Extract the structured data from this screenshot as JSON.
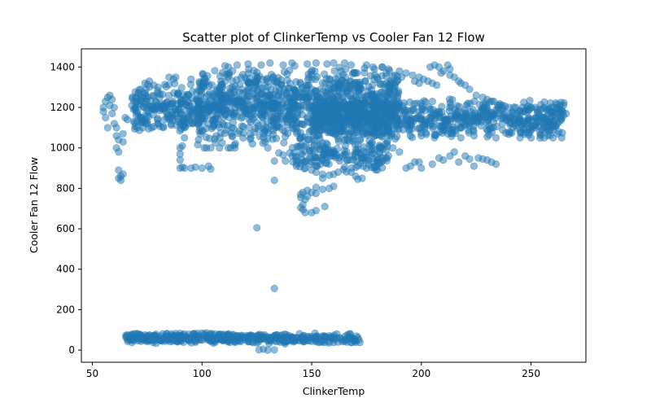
{
  "chart_data": {
    "type": "scatter",
    "title": "Scatter plot of ClinkerTemp vs Cooler Fan 12 Flow",
    "xlabel": "ClinkerTemp",
    "ylabel": "Cooler Fan 12 Flow",
    "xlim": [
      45,
      275
    ],
    "ylim": [
      -60,
      1490
    ],
    "xticks": [
      50,
      100,
      150,
      200,
      250
    ],
    "yticks": [
      0,
      200,
      400,
      600,
      800,
      1000,
      1200,
      1400
    ],
    "grid": false,
    "legend": "none",
    "marker_color": "#1f77b4",
    "marker_alpha": 0.5,
    "clusters": [
      {
        "x_range": [
          98,
          190
        ],
        "y_range": [
          1000,
          1415
        ],
        "count": 1100
      },
      {
        "x_range": [
          68,
          100
        ],
        "y_range": [
          1070,
          1330
        ],
        "count": 220
      },
      {
        "x_range": [
          150,
          265
        ],
        "y_range": [
          1040,
          1250
        ],
        "count": 700
      },
      {
        "x_range": [
          140,
          185
        ],
        "y_range": [
          880,
          1050
        ],
        "count": 160
      },
      {
        "x_range": [
          65,
          172
        ],
        "y_range": [
          30,
          85
        ],
        "count": 380
      }
    ],
    "points": [
      [
        55,
        1200
      ],
      [
        55,
        1180
      ],
      [
        56,
        1230
      ],
      [
        56,
        1150
      ],
      [
        57,
        1100
      ],
      [
        57,
        1250
      ],
      [
        58,
        1260
      ],
      [
        58,
        1210
      ],
      [
        59,
        1240
      ],
      [
        59,
        1170
      ],
      [
        60,
        1120
      ],
      [
        60,
        1200
      ],
      [
        61,
        1060
      ],
      [
        61,
        1100
      ],
      [
        61,
        1000
      ],
      [
        62,
        1040
      ],
      [
        62,
        980
      ],
      [
        62,
        890
      ],
      [
        63,
        860
      ],
      [
        63,
        840
      ],
      [
        62,
        850
      ],
      [
        64,
        870
      ],
      [
        64,
        1030
      ],
      [
        64,
        1070
      ],
      [
        65,
        1150
      ],
      [
        66,
        1140
      ],
      [
        90,
        1000
      ],
      [
        90,
        970
      ],
      [
        90,
        940
      ],
      [
        91,
        1010
      ],
      [
        92,
        1050
      ],
      [
        92,
        1100
      ],
      [
        88,
        1350
      ],
      [
        87,
        1340
      ],
      [
        86,
        1120
      ],
      [
        90,
        900
      ],
      [
        91,
        905
      ],
      [
        92,
        900
      ],
      [
        95,
        900
      ],
      [
        97,
        905
      ],
      [
        100,
        900
      ],
      [
        103,
        910
      ],
      [
        104,
        895
      ],
      [
        101,
        1000
      ],
      [
        102,
        1000
      ],
      [
        104,
        1000
      ],
      [
        108,
        1000
      ],
      [
        112,
        1000
      ],
      [
        113,
        1000
      ],
      [
        115,
        1000
      ],
      [
        130,
        1000
      ],
      [
        135,
        975
      ],
      [
        137,
        965
      ],
      [
        140,
        975
      ],
      [
        138,
        935
      ],
      [
        133,
        935
      ],
      [
        133,
        840
      ],
      [
        125,
        605
      ],
      [
        133,
        305
      ],
      [
        143,
        935
      ],
      [
        143,
        910
      ],
      [
        147,
        900
      ],
      [
        150,
        890
      ],
      [
        152,
        880
      ],
      [
        155,
        870
      ],
      [
        158,
        865
      ],
      [
        160,
        870
      ],
      [
        162,
        880
      ],
      [
        165,
        905
      ],
      [
        168,
        880
      ],
      [
        170,
        860
      ],
      [
        171,
        845
      ],
      [
        155,
        850
      ],
      [
        152,
        805
      ],
      [
        155,
        795
      ],
      [
        158,
        800
      ],
      [
        160,
        810
      ],
      [
        148,
        790
      ],
      [
        146,
        780
      ],
      [
        145,
        770
      ],
      [
        145,
        755
      ],
      [
        147,
        745
      ],
      [
        146,
        720
      ],
      [
        145,
        705
      ],
      [
        146,
        695
      ],
      [
        147,
        680
      ],
      [
        150,
        680
      ],
      [
        152,
        690
      ],
      [
        156,
        710
      ],
      [
        148,
        760
      ],
      [
        150,
        780
      ],
      [
        152,
        775
      ],
      [
        173,
        850
      ],
      [
        175,
        900
      ],
      [
        176,
        920
      ],
      [
        178,
        930
      ],
      [
        180,
        940
      ],
      [
        182,
        950
      ],
      [
        185,
        960
      ],
      [
        187,
        1000
      ],
      [
        190,
        980
      ],
      [
        193,
        900
      ],
      [
        195,
        910
      ],
      [
        197,
        930
      ],
      [
        199,
        930
      ],
      [
        200,
        900
      ],
      [
        205,
        920
      ],
      [
        208,
        950
      ],
      [
        210,
        940
      ],
      [
        213,
        960
      ],
      [
        215,
        980
      ],
      [
        217,
        930
      ],
      [
        220,
        960
      ],
      [
        222,
        945
      ],
      [
        224,
        910
      ],
      [
        226,
        950
      ],
      [
        228,
        945
      ],
      [
        230,
        940
      ],
      [
        232,
        930
      ],
      [
        234,
        920
      ],
      [
        204,
        1400
      ],
      [
        206,
        1410
      ],
      [
        208,
        1400
      ],
      [
        212,
        1410
      ],
      [
        213,
        1390
      ],
      [
        210,
        1380
      ],
      [
        209,
        1370
      ],
      [
        213,
        1360
      ],
      [
        215,
        1350
      ],
      [
        217,
        1330
      ],
      [
        218,
        1320
      ],
      [
        220,
        1310
      ],
      [
        222,
        1290
      ],
      [
        225,
        1260
      ],
      [
        228,
        1250
      ],
      [
        230,
        1240
      ],
      [
        233,
        1230
      ],
      [
        237,
        1210
      ],
      [
        240,
        1200
      ],
      [
        243,
        1200
      ],
      [
        246,
        1200
      ],
      [
        248,
        1200
      ],
      [
        250,
        1200
      ],
      [
        252,
        1200
      ],
      [
        256,
        1200
      ],
      [
        258,
        1190
      ],
      [
        260,
        1200
      ],
      [
        262,
        1200
      ],
      [
        264,
        1180
      ],
      [
        266,
        1170
      ],
      [
        252,
        1100
      ],
      [
        255,
        1090
      ],
      [
        258,
        1080
      ],
      [
        260,
        1090
      ],
      [
        262,
        1070
      ],
      [
        264,
        1050
      ],
      [
        260,
        1050
      ],
      [
        256,
        1050
      ],
      [
        250,
        1050
      ],
      [
        245,
        1050
      ],
      [
        234,
        1050
      ],
      [
        230,
        1055
      ],
      [
        224,
        1060
      ],
      [
        218,
        1050
      ],
      [
        212,
        1070
      ],
      [
        206,
        1050
      ],
      [
        200,
        1060
      ],
      [
        195,
        1060
      ],
      [
        188,
        1045
      ],
      [
        182,
        1055
      ],
      [
        168,
        1410
      ],
      [
        165,
        1420
      ],
      [
        160,
        1420
      ],
      [
        157,
        1415
      ],
      [
        152,
        1420
      ],
      [
        148,
        1415
      ],
      [
        141,
        1420
      ],
      [
        137,
        1410
      ],
      [
        131,
        1420
      ],
      [
        127,
        1410
      ],
      [
        121,
        1415
      ],
      [
        116,
        1410
      ],
      [
        112,
        1400
      ],
      [
        175,
        1410
      ],
      [
        178,
        1400
      ],
      [
        182,
        1400
      ],
      [
        185,
        1390
      ],
      [
        190,
        1380
      ],
      [
        193,
        1370
      ],
      [
        196,
        1360
      ],
      [
        199,
        1350
      ],
      [
        201,
        1340
      ],
      [
        203,
        1330
      ],
      [
        205,
        1320
      ],
      [
        207,
        1310
      ],
      [
        197,
        1330
      ],
      [
        199,
        1320
      ],
      [
        184,
        1370
      ],
      [
        188,
        1360
      ],
      [
        191,
        1350
      ],
      [
        74,
        1320
      ],
      [
        76,
        1330
      ],
      [
        78,
        1310
      ],
      [
        80,
        1300
      ],
      [
        72,
        1290
      ],
      [
        71,
        1270
      ],
      [
        70,
        1250
      ],
      [
        69,
        1230
      ],
      [
        68,
        1210
      ],
      [
        70,
        1180
      ],
      [
        71,
        1160
      ],
      [
        72,
        1140
      ],
      [
        73,
        1100
      ],
      [
        75,
        1120
      ],
      [
        77,
        1100
      ],
      [
        80,
        1120
      ],
      [
        83,
        1140
      ],
      [
        85,
        1350
      ],
      [
        95,
        1340
      ],
      [
        99,
        1320
      ],
      [
        66,
        75
      ],
      [
        67,
        72
      ],
      [
        68,
        78
      ],
      [
        69,
        80
      ],
      [
        70,
        82
      ],
      [
        71,
        80
      ],
      [
        72,
        76
      ],
      [
        74,
        75
      ],
      [
        76,
        74
      ],
      [
        79,
        78
      ],
      [
        82,
        80
      ],
      [
        84,
        82
      ],
      [
        86,
        80
      ],
      [
        88,
        82
      ],
      [
        90,
        83
      ],
      [
        92,
        80
      ],
      [
        94,
        78
      ],
      [
        96,
        80
      ],
      [
        98,
        82
      ],
      [
        100,
        84
      ],
      [
        102,
        85
      ],
      [
        104,
        82
      ],
      [
        106,
        80
      ],
      [
        108,
        76
      ],
      [
        110,
        78
      ],
      [
        112,
        80
      ],
      [
        114,
        74
      ],
      [
        116,
        72
      ],
      [
        118,
        70
      ],
      [
        120,
        72
      ],
      [
        122,
        70
      ],
      [
        124,
        68
      ],
      [
        126,
        70
      ],
      [
        128,
        66
      ],
      [
        130,
        64
      ],
      [
        132,
        62
      ],
      [
        134,
        60
      ],
      [
        136,
        58
      ],
      [
        138,
        56
      ],
      [
        140,
        54
      ],
      [
        142,
        52
      ],
      [
        144,
        50
      ],
      [
        146,
        48
      ],
      [
        148,
        46
      ],
      [
        150,
        44
      ],
      [
        152,
        42
      ],
      [
        154,
        40
      ],
      [
        156,
        38
      ],
      [
        158,
        36
      ],
      [
        160,
        38
      ],
      [
        162,
        40
      ],
      [
        164,
        42
      ],
      [
        166,
        40
      ],
      [
        168,
        38
      ],
      [
        170,
        38
      ],
      [
        172,
        38
      ],
      [
        126,
        2
      ],
      [
        128,
        5
      ],
      [
        130,
        0
      ],
      [
        133,
        1
      ]
    ]
  }
}
